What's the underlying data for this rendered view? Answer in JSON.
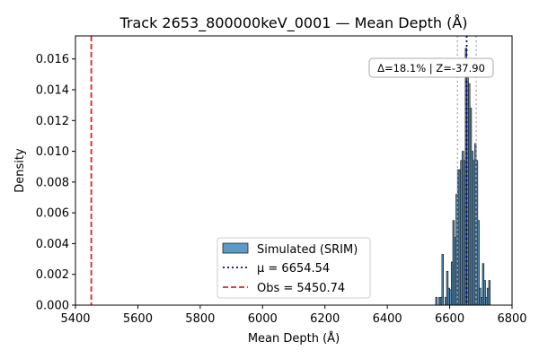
{
  "chart_data": {
    "type": "bar",
    "title": "Track 2653_800000keV_0001 — Mean Depth (Å)",
    "xlabel": "Mean Depth (Å)",
    "ylabel": "Density",
    "xlim": [
      5400,
      6800
    ],
    "ylim": [
      0,
      0.0175
    ],
    "x_ticks": [
      "5400",
      "5600",
      "5800",
      "6000",
      "6200",
      "6400",
      "6600",
      "6800"
    ],
    "y_ticks": [
      "0.000",
      "0.002",
      "0.004",
      "0.006",
      "0.008",
      "0.010",
      "0.012",
      "0.014",
      "0.016"
    ],
    "histogram": {
      "name": "Simulated (SRIM)",
      "bin_width": 5,
      "color": "#5b9bc8",
      "bins": [
        {
          "x0": 6555,
          "density": 0.0005
        },
        {
          "x0": 6560,
          "density": 0.0
        },
        {
          "x0": 6565,
          "density": 0.0005
        },
        {
          "x0": 6570,
          "density": 0.0005
        },
        {
          "x0": 6575,
          "density": 0.0033
        },
        {
          "x0": 6580,
          "density": 0.0
        },
        {
          "x0": 6585,
          "density": 0.0005
        },
        {
          "x0": 6590,
          "density": 0.0022
        },
        {
          "x0": 6595,
          "density": 0.0011
        },
        {
          "x0": 6600,
          "density": 0.001
        },
        {
          "x0": 6605,
          "density": 0.0028
        },
        {
          "x0": 6610,
          "density": 0.0055
        },
        {
          "x0": 6615,
          "density": 0.0044
        },
        {
          "x0": 6620,
          "density": 0.0072
        },
        {
          "x0": 6625,
          "density": 0.0088
        },
        {
          "x0": 6630,
          "density": 0.0088
        },
        {
          "x0": 6635,
          "density": 0.0094
        },
        {
          "x0": 6640,
          "density": 0.01
        },
        {
          "x0": 6645,
          "density": 0.0094
        },
        {
          "x0": 6650,
          "density": 0.0167
        },
        {
          "x0": 6655,
          "density": 0.015
        },
        {
          "x0": 6660,
          "density": 0.0144
        },
        {
          "x0": 6665,
          "density": 0.0128
        },
        {
          "x0": 6670,
          "density": 0.01
        },
        {
          "x0": 6675,
          "density": 0.0094
        },
        {
          "x0": 6680,
          "density": 0.0105
        },
        {
          "x0": 6685,
          "density": 0.0094
        },
        {
          "x0": 6690,
          "density": 0.0055
        },
        {
          "x0": 6695,
          "density": 0.0011
        },
        {
          "x0": 6700,
          "density": 0.0005
        },
        {
          "x0": 6705,
          "density": 0.0027
        },
        {
          "x0": 6710,
          "density": 0.0016
        },
        {
          "x0": 6715,
          "density": 0.0005
        },
        {
          "x0": 6720,
          "density": 0.0011
        },
        {
          "x0": 6725,
          "density": 0.0016
        }
      ]
    },
    "vlines": [
      {
        "name": "μ = 6654.54",
        "x": 6654.54,
        "color": "#0000a0",
        "style": "dotted"
      },
      {
        "name": "Obs = 5450.74",
        "x": 5450.74,
        "color": "#e02020",
        "style": "dashed"
      }
    ],
    "sigma_lines": [
      6625,
      6685
    ],
    "annotation": "Δ=18.1% | Z=-37.90",
    "legend": {
      "placement": "bottom-center"
    }
  }
}
